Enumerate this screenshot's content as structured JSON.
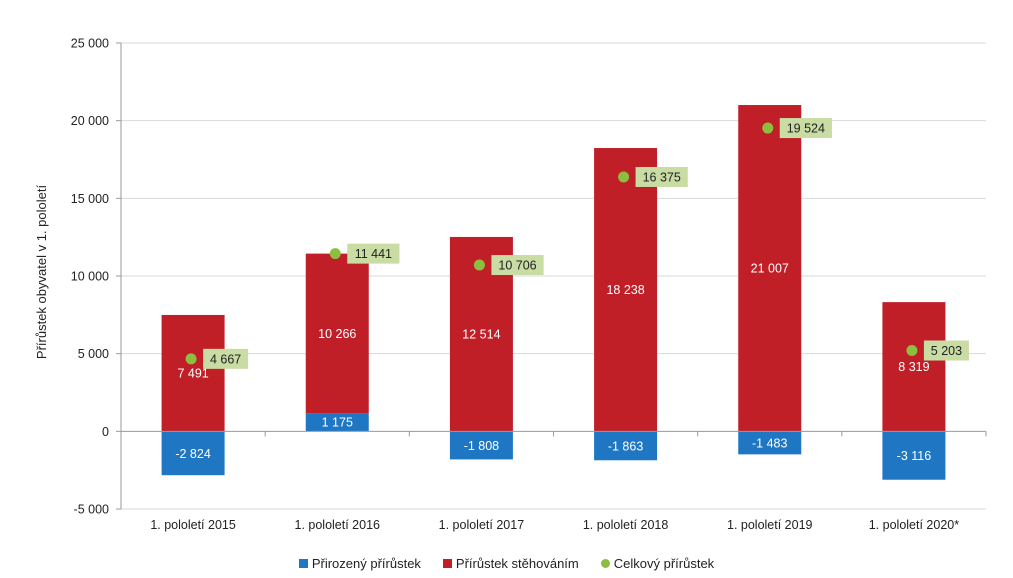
{
  "chart_data": {
    "type": "bar",
    "stacked": true,
    "title": "",
    "xlabel": "",
    "ylabel": "Přírůstek obyvatel v 1. pololetí",
    "ylim": [
      -5000,
      25000
    ],
    "yticks": [
      -5000,
      0,
      5000,
      10000,
      15000,
      20000,
      25000
    ],
    "ytick_labels": [
      "-5 000",
      "0",
      "5 000",
      "10 000",
      "15 000",
      "20 000",
      "25 000"
    ],
    "categories": [
      "1. pololetí 2015",
      "1. pololetí 2016",
      "1. pololetí 2017",
      "1. pololetí 2018",
      "1. pololetí 2019",
      "1. pololetí 2020*"
    ],
    "grid": true,
    "legend_position": "bottom",
    "series": [
      {
        "name": "Přirozený přírůstek",
        "kind": "bar",
        "color": "#1f77c4",
        "values": [
          -2824,
          1175,
          -1808,
          -1863,
          -1483,
          -3116
        ],
        "labels": [
          "-2 824",
          "1 175",
          "-1 808",
          "-1 863",
          "-1 483",
          "-3 116"
        ]
      },
      {
        "name": "Přírůstek stěhováním",
        "kind": "bar",
        "color": "#c01f28",
        "values": [
          7491,
          10266,
          12514,
          18238,
          21007,
          8319
        ],
        "labels": [
          "7 491",
          "10 266",
          "12 514",
          "18 238",
          "21 007",
          "8 319"
        ]
      },
      {
        "name": "Celkový přírůstek",
        "kind": "point",
        "color": "#8cbf3f",
        "label_bg": "#c9dca3",
        "values": [
          4667,
          11441,
          10706,
          16375,
          19524,
          5203
        ],
        "labels": [
          "4 667",
          "11 441",
          "10 706",
          "16 375",
          "19 524",
          "5 203"
        ]
      }
    ]
  }
}
